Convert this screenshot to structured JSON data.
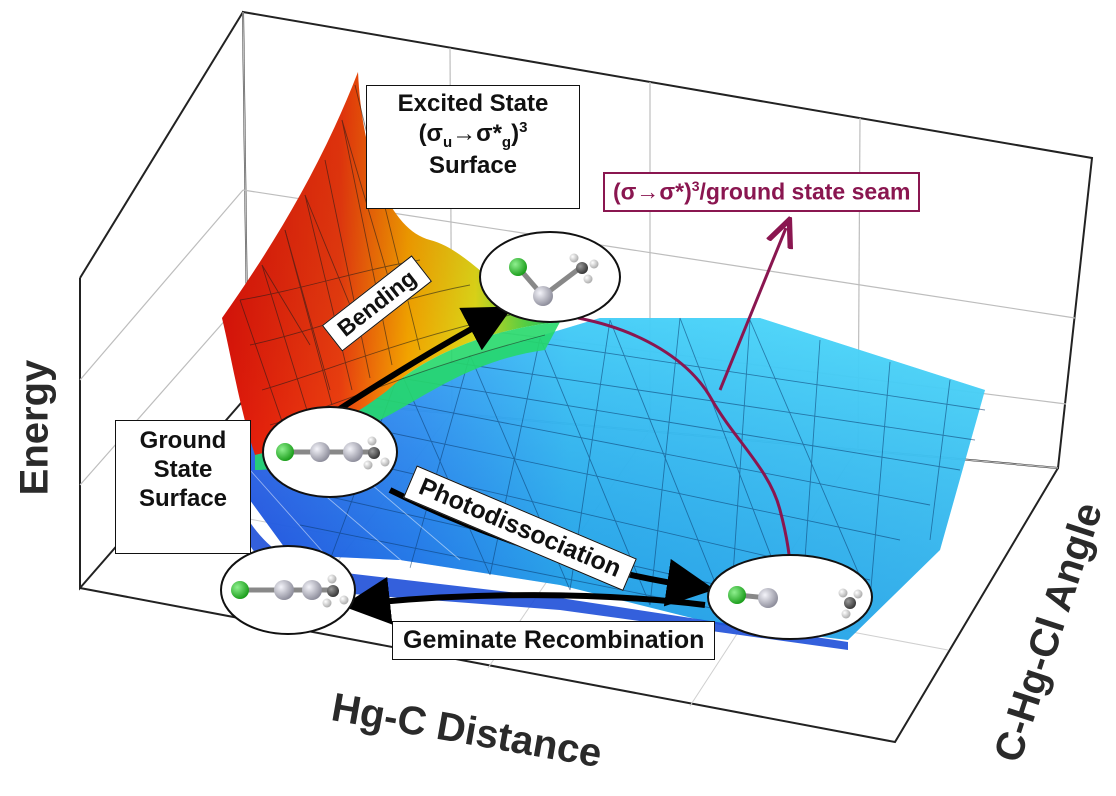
{
  "axes": {
    "y_label": "Energy",
    "x_label": "Hg-C Distance",
    "z_label": "C-Hg-Cl Angle"
  },
  "labels": {
    "excited_line1": "Excited State",
    "excited_line2_prefix": "(σ",
    "excited_sub_u": "u",
    "excited_arrow": "→σ*",
    "excited_sub_g": "g",
    "excited_close": ")",
    "excited_sup": "3",
    "excited_line3": "Surface",
    "ground_line1": "Ground",
    "ground_line2": "State",
    "ground_line3": "Surface",
    "seam_prefix": "(σ→σ*)",
    "seam_sup": "3",
    "seam_suffix": "/ground state seam",
    "bending": "Bending",
    "photodissociation": "Photodissociation",
    "geminate": "Geminate Recombination"
  },
  "colors": {
    "seam": "#8a1650",
    "ground_surface": "#2fc6f0",
    "frame": "#222222",
    "grid": "#bdbdbd",
    "chlorine": "#2ab52a",
    "mercury": "#b8b8c4",
    "hydrogen": "#e6e6e6",
    "carbon": "#555555"
  },
  "molecules": [
    "bent-hgcl-ch3",
    "linear-ch3hgcl",
    "linear-ch3hgcl",
    "hgcl-plus-ch3"
  ]
}
